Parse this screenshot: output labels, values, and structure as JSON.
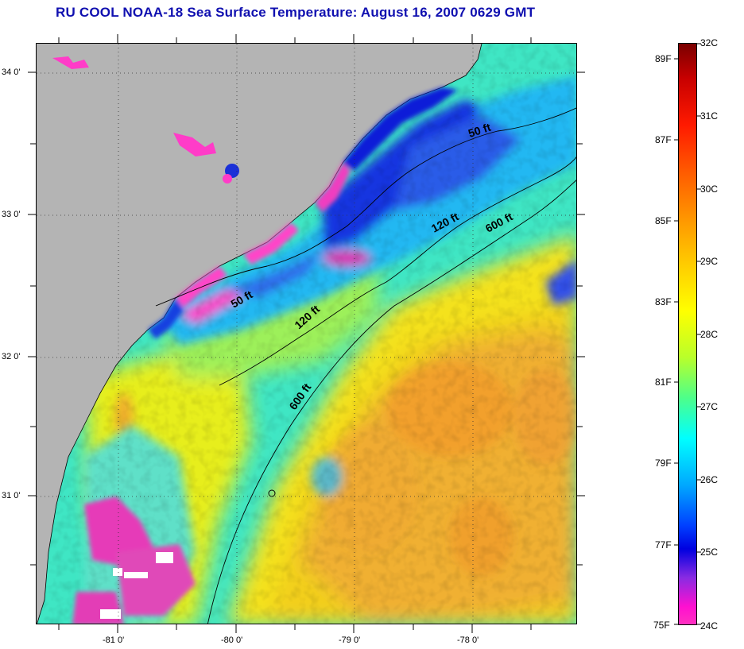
{
  "title": "RU COOL  NOAA-18  Sea Surface Temperature:  August 16, 2007 0629 GMT",
  "map": {
    "latitude_labels": [
      "34 0'",
      "33 0'",
      "32 0'",
      "31 0'"
    ],
    "longitude_labels": [
      "-81 0'",
      "-80 0'",
      "-79 0'",
      "-78 0'"
    ],
    "contour_labels": [
      "50 ft",
      "120 ft",
      "600 ft",
      "50 ft",
      "120 ft",
      "600 ft"
    ],
    "colors": {
      "land": "#b4b4b4",
      "frame": "#000000"
    }
  },
  "colorbar": {
    "celsius_labels": [
      "32C",
      "31C",
      "30C",
      "29C",
      "28C",
      "27C",
      "26C",
      "25C",
      "24C"
    ],
    "fahrenheit_labels": [
      "89F",
      "87F",
      "85F",
      "83F",
      "81F",
      "79F",
      "77F",
      "75F"
    ]
  }
}
